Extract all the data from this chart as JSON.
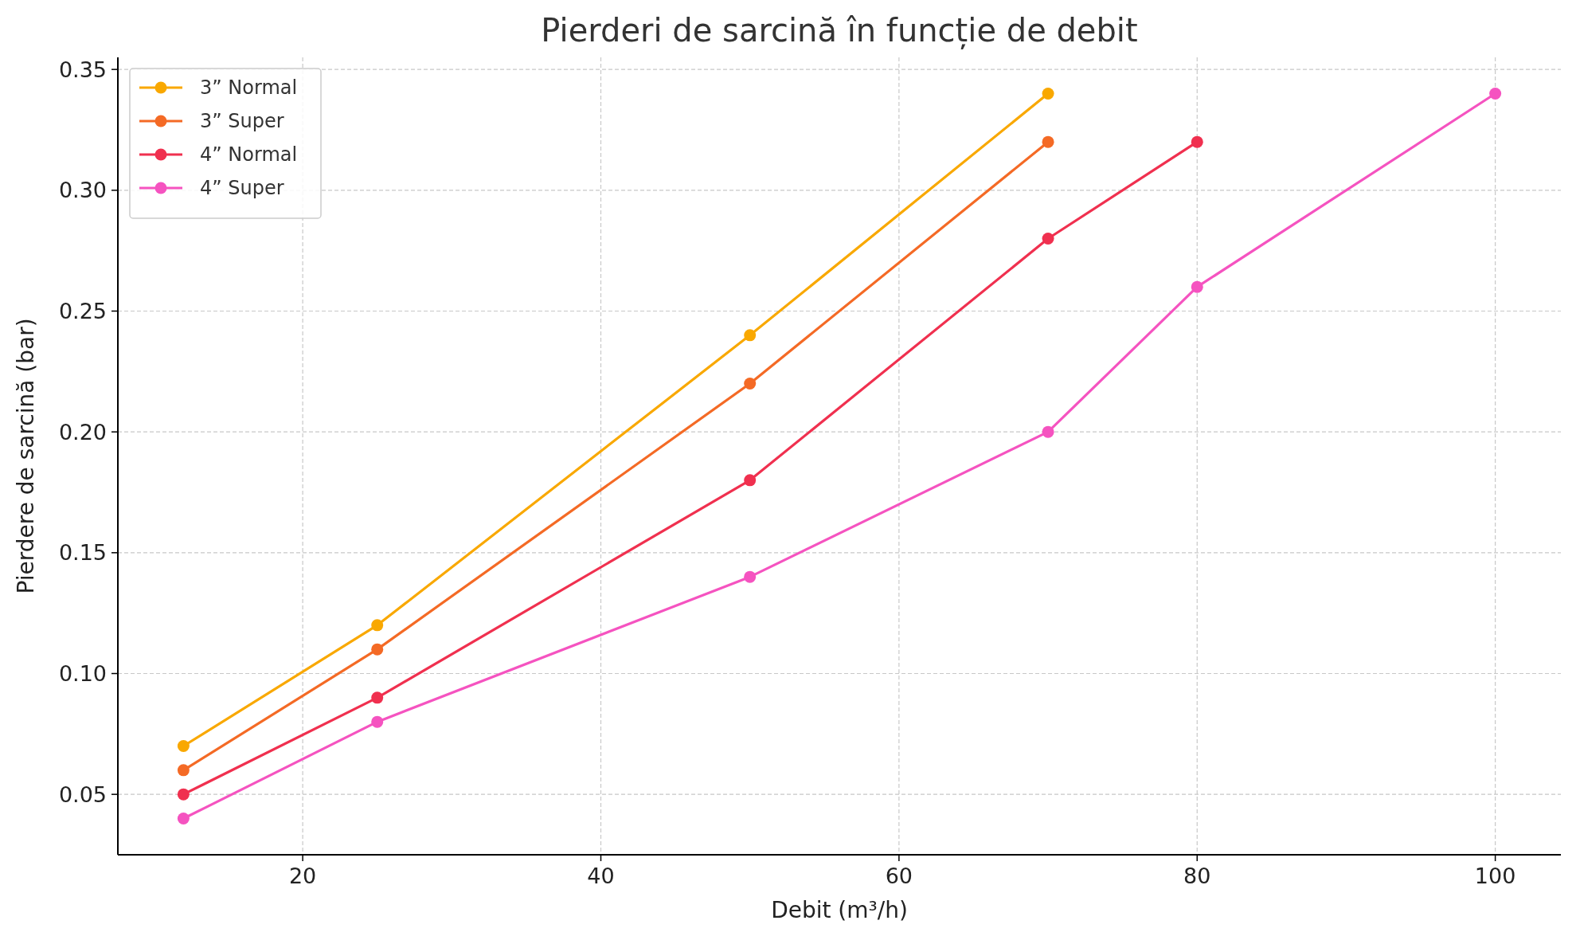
{
  "chart_data": {
    "type": "line",
    "title": "Pierderi de sarcină în funcție de debit",
    "xlabel": "Debit (m³/h)",
    "ylabel": "Pierdere de sarcină (bar)",
    "xlim": [
      7.6,
      104.4
    ],
    "xticks": [
      20,
      40,
      60,
      80,
      100
    ],
    "ylim": [
      0.025,
      0.355
    ],
    "yticks": [
      0.05,
      {
        "value": 0.1,
        "label": "0.10"
      },
      0.15,
      {
        "value": 0.2,
        "label": "0.20"
      },
      0.25,
      {
        "value": 0.3,
        "label": "0.30"
      },
      0.35
    ],
    "grid": true,
    "legend": "top left",
    "marker": "circle",
    "line_style": "solid",
    "series": [
      {
        "name": "3” Normal",
        "color": "#f9a800",
        "x": [
          12,
          25,
          50,
          70
        ],
        "values": [
          0.07,
          0.12,
          0.24,
          0.34
        ]
      },
      {
        "name": "3” Super",
        "color": "#f46a25",
        "x": [
          12,
          25,
          50,
          70
        ],
        "values": [
          0.06,
          0.11,
          0.22,
          0.32
        ]
      },
      {
        "name": "4” Normal",
        "color": "#f0304f",
        "x": [
          12,
          25,
          50,
          70,
          80
        ],
        "values": [
          0.05,
          0.09,
          0.18,
          0.28,
          0.32
        ]
      },
      {
        "name": "4” Super",
        "color": "#f553c0",
        "x": [
          12,
          25,
          50,
          70,
          80,
          100
        ],
        "values": [
          0.04,
          0.08,
          0.14,
          0.2,
          0.26,
          0.34
        ]
      }
    ]
  }
}
